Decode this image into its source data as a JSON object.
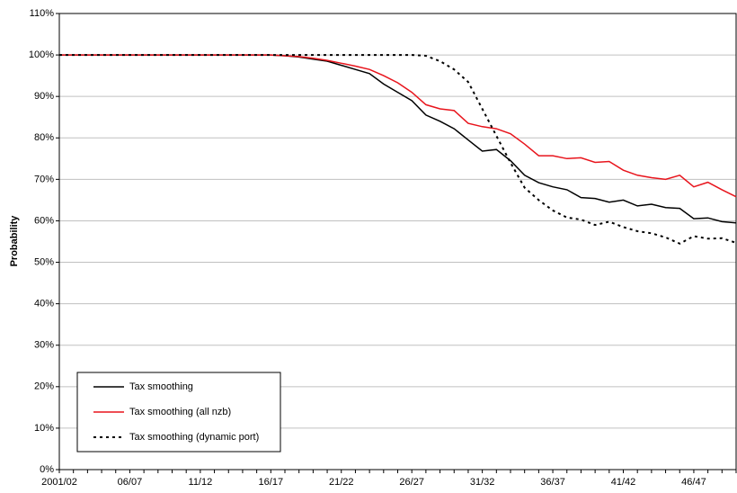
{
  "chart_data": {
    "type": "line",
    "y_label": "Probability",
    "categories": [
      "2001/02",
      null,
      null,
      null,
      null,
      "06/07",
      null,
      null,
      null,
      null,
      "11/12",
      null,
      null,
      null,
      null,
      "16/17",
      null,
      null,
      null,
      null,
      "21/22",
      null,
      null,
      null,
      null,
      "26/27",
      null,
      null,
      null,
      null,
      "31/32",
      null,
      null,
      null,
      null,
      "36/37",
      null,
      null,
      null,
      null,
      "41/42",
      null,
      null,
      null,
      null,
      "46/47",
      null,
      null,
      null
    ],
    "ylim": [
      0,
      110
    ],
    "yticks": [
      {
        "value": 0,
        "label": "0%"
      },
      {
        "value": 10,
        "label": "10%"
      },
      {
        "value": 20,
        "label": "20%"
      },
      {
        "value": 30,
        "label": "30%"
      },
      {
        "value": 40,
        "label": "40%"
      },
      {
        "value": 50,
        "label": "50%"
      },
      {
        "value": 60,
        "label": "60%"
      },
      {
        "value": 70,
        "label": "70%"
      },
      {
        "value": 80,
        "label": "80%"
      },
      {
        "value": 90,
        "label": "90%"
      },
      {
        "value": 100,
        "label": "100%"
      },
      {
        "value": 110,
        "label": "110%"
      }
    ],
    "grid": true,
    "legend": "lower left",
    "series": [
      {
        "name": "Tax smoothing",
        "color": "#000000",
        "line_style": "solid",
        "values": [
          100,
          100,
          100,
          100,
          100,
          100,
          100,
          100,
          100,
          100,
          100,
          100,
          100,
          100,
          100,
          100,
          99.8,
          99.5,
          99,
          98.5,
          97.5,
          96.5,
          95.5,
          93,
          91,
          89,
          85.5,
          84,
          82.2,
          79.5,
          76.8,
          77.2,
          74.5,
          71,
          69.2,
          68.2,
          67.5,
          65.6,
          65.4,
          64.5,
          65,
          63.6,
          64,
          63.2,
          63,
          60.5,
          60.7,
          59.8,
          59.5
        ]
      },
      {
        "name": "Tax smoothing (all nzb)",
        "color": "#e8141c",
        "line_style": "solid",
        "values": [
          100,
          100,
          100,
          100,
          100,
          100,
          100,
          100,
          100,
          100,
          100,
          100,
          100,
          100,
          100,
          100,
          99.8,
          99.6,
          99.2,
          98.7,
          98,
          97.3,
          96.5,
          95,
          93.3,
          91,
          88,
          87,
          86.6,
          83.5,
          82.7,
          82.2,
          81,
          78.5,
          75.7,
          75.7,
          75,
          75.2,
          74.1,
          74.3,
          72.2,
          71,
          70.4,
          70,
          71,
          68.2,
          69.3,
          67.5,
          65.8
        ]
      },
      {
        "name": "Tax smoothing (dynamic port)",
        "color": "#000000",
        "line_style": "dotted",
        "values": [
          100,
          100,
          100,
          100,
          100,
          100,
          100,
          100,
          100,
          100,
          100,
          100,
          100,
          100,
          100,
          100,
          100,
          100,
          100,
          100,
          100,
          100,
          100,
          100,
          100,
          100,
          99.8,
          98.5,
          96.5,
          93.5,
          87,
          80.5,
          74,
          68,
          65,
          62.5,
          60.8,
          60.3,
          59,
          59.8,
          58.5,
          57.5,
          57,
          56,
          54.5,
          56.3,
          55.7,
          55.8,
          54.7
        ]
      }
    ]
  }
}
